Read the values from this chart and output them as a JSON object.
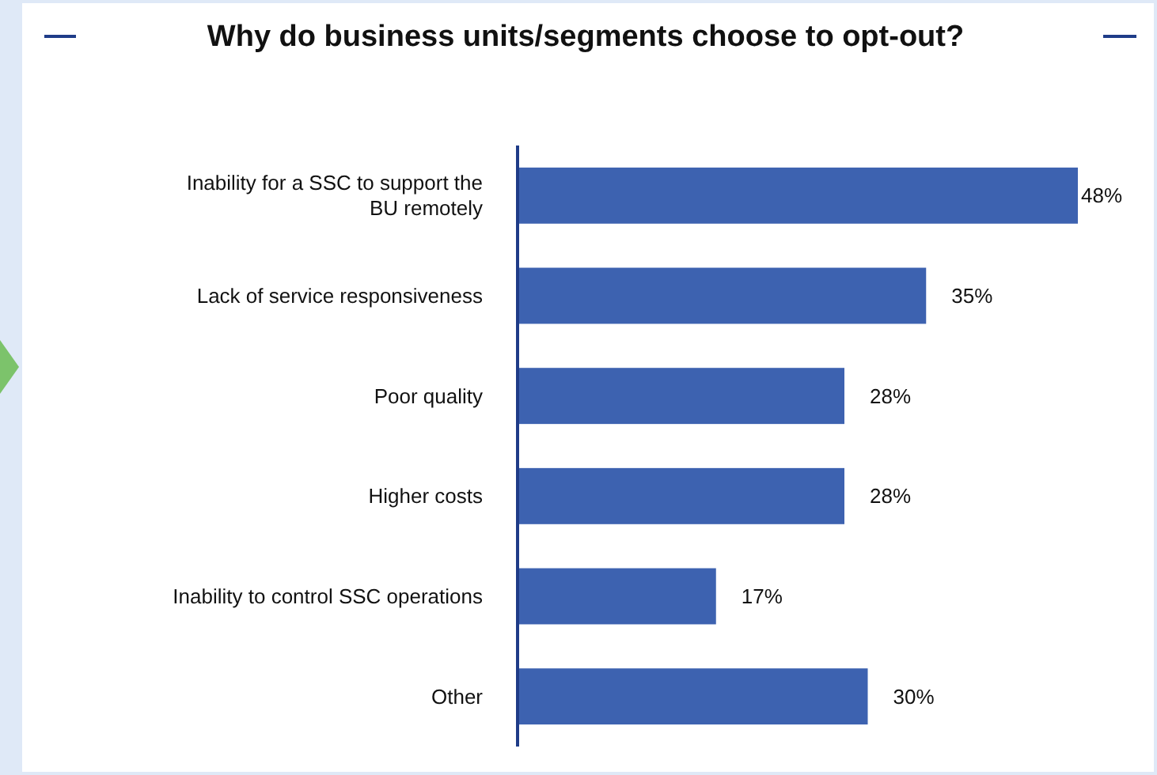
{
  "chart_data": {
    "type": "bar",
    "orientation": "horizontal",
    "title": "Why do business units/segments choose to opt-out?",
    "categories": [
      "Inability for a SSC to support the BU remotely",
      "Lack of service responsiveness",
      "Poor quality",
      "Higher costs",
      "Inability to control SSC operations",
      "Other"
    ],
    "values": [
      48,
      35,
      28,
      28,
      17,
      30
    ],
    "value_labels": [
      "48%",
      "35%",
      "28%",
      "28%",
      "17%",
      "30%"
    ],
    "color": "#3d62b0",
    "tick_labels": "y"
  }
}
